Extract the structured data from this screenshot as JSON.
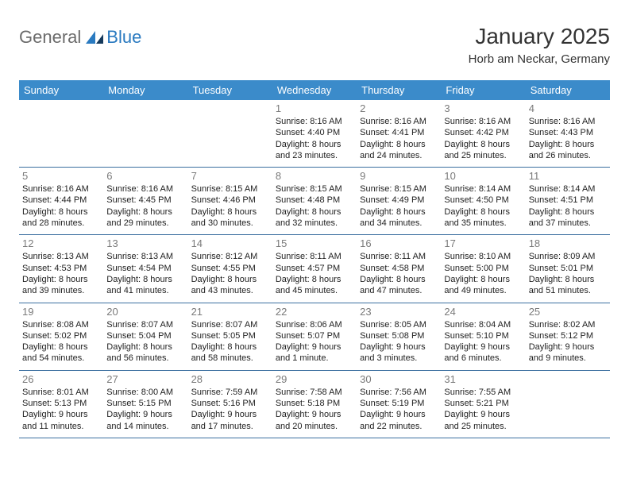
{
  "logo": {
    "text1": "General",
    "text2": "Blue"
  },
  "title": "January 2025",
  "location": "Horb am Neckar, Germany",
  "colors": {
    "header_bg": "#3b8bca",
    "header_text": "#ffffff",
    "border": "#3b6fa0",
    "daynum": "#7a7a7a",
    "body_text": "#222222",
    "logo_gray": "#6b6b6b",
    "logo_blue": "#2a7ac0"
  },
  "weekdays": [
    "Sunday",
    "Monday",
    "Tuesday",
    "Wednesday",
    "Thursday",
    "Friday",
    "Saturday"
  ],
  "weeks": [
    [
      null,
      null,
      null,
      {
        "n": "1",
        "l1": "Sunrise: 8:16 AM",
        "l2": "Sunset: 4:40 PM",
        "l3": "Daylight: 8 hours",
        "l4": "and 23 minutes."
      },
      {
        "n": "2",
        "l1": "Sunrise: 8:16 AM",
        "l2": "Sunset: 4:41 PM",
        "l3": "Daylight: 8 hours",
        "l4": "and 24 minutes."
      },
      {
        "n": "3",
        "l1": "Sunrise: 8:16 AM",
        "l2": "Sunset: 4:42 PM",
        "l3": "Daylight: 8 hours",
        "l4": "and 25 minutes."
      },
      {
        "n": "4",
        "l1": "Sunrise: 8:16 AM",
        "l2": "Sunset: 4:43 PM",
        "l3": "Daylight: 8 hours",
        "l4": "and 26 minutes."
      }
    ],
    [
      {
        "n": "5",
        "l1": "Sunrise: 8:16 AM",
        "l2": "Sunset: 4:44 PM",
        "l3": "Daylight: 8 hours",
        "l4": "and 28 minutes."
      },
      {
        "n": "6",
        "l1": "Sunrise: 8:16 AM",
        "l2": "Sunset: 4:45 PM",
        "l3": "Daylight: 8 hours",
        "l4": "and 29 minutes."
      },
      {
        "n": "7",
        "l1": "Sunrise: 8:15 AM",
        "l2": "Sunset: 4:46 PM",
        "l3": "Daylight: 8 hours",
        "l4": "and 30 minutes."
      },
      {
        "n": "8",
        "l1": "Sunrise: 8:15 AM",
        "l2": "Sunset: 4:48 PM",
        "l3": "Daylight: 8 hours",
        "l4": "and 32 minutes."
      },
      {
        "n": "9",
        "l1": "Sunrise: 8:15 AM",
        "l2": "Sunset: 4:49 PM",
        "l3": "Daylight: 8 hours",
        "l4": "and 34 minutes."
      },
      {
        "n": "10",
        "l1": "Sunrise: 8:14 AM",
        "l2": "Sunset: 4:50 PM",
        "l3": "Daylight: 8 hours",
        "l4": "and 35 minutes."
      },
      {
        "n": "11",
        "l1": "Sunrise: 8:14 AM",
        "l2": "Sunset: 4:51 PM",
        "l3": "Daylight: 8 hours",
        "l4": "and 37 minutes."
      }
    ],
    [
      {
        "n": "12",
        "l1": "Sunrise: 8:13 AM",
        "l2": "Sunset: 4:53 PM",
        "l3": "Daylight: 8 hours",
        "l4": "and 39 minutes."
      },
      {
        "n": "13",
        "l1": "Sunrise: 8:13 AM",
        "l2": "Sunset: 4:54 PM",
        "l3": "Daylight: 8 hours",
        "l4": "and 41 minutes."
      },
      {
        "n": "14",
        "l1": "Sunrise: 8:12 AM",
        "l2": "Sunset: 4:55 PM",
        "l3": "Daylight: 8 hours",
        "l4": "and 43 minutes."
      },
      {
        "n": "15",
        "l1": "Sunrise: 8:11 AM",
        "l2": "Sunset: 4:57 PM",
        "l3": "Daylight: 8 hours",
        "l4": "and 45 minutes."
      },
      {
        "n": "16",
        "l1": "Sunrise: 8:11 AM",
        "l2": "Sunset: 4:58 PM",
        "l3": "Daylight: 8 hours",
        "l4": "and 47 minutes."
      },
      {
        "n": "17",
        "l1": "Sunrise: 8:10 AM",
        "l2": "Sunset: 5:00 PM",
        "l3": "Daylight: 8 hours",
        "l4": "and 49 minutes."
      },
      {
        "n": "18",
        "l1": "Sunrise: 8:09 AM",
        "l2": "Sunset: 5:01 PM",
        "l3": "Daylight: 8 hours",
        "l4": "and 51 minutes."
      }
    ],
    [
      {
        "n": "19",
        "l1": "Sunrise: 8:08 AM",
        "l2": "Sunset: 5:02 PM",
        "l3": "Daylight: 8 hours",
        "l4": "and 54 minutes."
      },
      {
        "n": "20",
        "l1": "Sunrise: 8:07 AM",
        "l2": "Sunset: 5:04 PM",
        "l3": "Daylight: 8 hours",
        "l4": "and 56 minutes."
      },
      {
        "n": "21",
        "l1": "Sunrise: 8:07 AM",
        "l2": "Sunset: 5:05 PM",
        "l3": "Daylight: 8 hours",
        "l4": "and 58 minutes."
      },
      {
        "n": "22",
        "l1": "Sunrise: 8:06 AM",
        "l2": "Sunset: 5:07 PM",
        "l3": "Daylight: 9 hours",
        "l4": "and 1 minute."
      },
      {
        "n": "23",
        "l1": "Sunrise: 8:05 AM",
        "l2": "Sunset: 5:08 PM",
        "l3": "Daylight: 9 hours",
        "l4": "and 3 minutes."
      },
      {
        "n": "24",
        "l1": "Sunrise: 8:04 AM",
        "l2": "Sunset: 5:10 PM",
        "l3": "Daylight: 9 hours",
        "l4": "and 6 minutes."
      },
      {
        "n": "25",
        "l1": "Sunrise: 8:02 AM",
        "l2": "Sunset: 5:12 PM",
        "l3": "Daylight: 9 hours",
        "l4": "and 9 minutes."
      }
    ],
    [
      {
        "n": "26",
        "l1": "Sunrise: 8:01 AM",
        "l2": "Sunset: 5:13 PM",
        "l3": "Daylight: 9 hours",
        "l4": "and 11 minutes."
      },
      {
        "n": "27",
        "l1": "Sunrise: 8:00 AM",
        "l2": "Sunset: 5:15 PM",
        "l3": "Daylight: 9 hours",
        "l4": "and 14 minutes."
      },
      {
        "n": "28",
        "l1": "Sunrise: 7:59 AM",
        "l2": "Sunset: 5:16 PM",
        "l3": "Daylight: 9 hours",
        "l4": "and 17 minutes."
      },
      {
        "n": "29",
        "l1": "Sunrise: 7:58 AM",
        "l2": "Sunset: 5:18 PM",
        "l3": "Daylight: 9 hours",
        "l4": "and 20 minutes."
      },
      {
        "n": "30",
        "l1": "Sunrise: 7:56 AM",
        "l2": "Sunset: 5:19 PM",
        "l3": "Daylight: 9 hours",
        "l4": "and 22 minutes."
      },
      {
        "n": "31",
        "l1": "Sunrise: 7:55 AM",
        "l2": "Sunset: 5:21 PM",
        "l3": "Daylight: 9 hours",
        "l4": "and 25 minutes."
      },
      null
    ]
  ]
}
